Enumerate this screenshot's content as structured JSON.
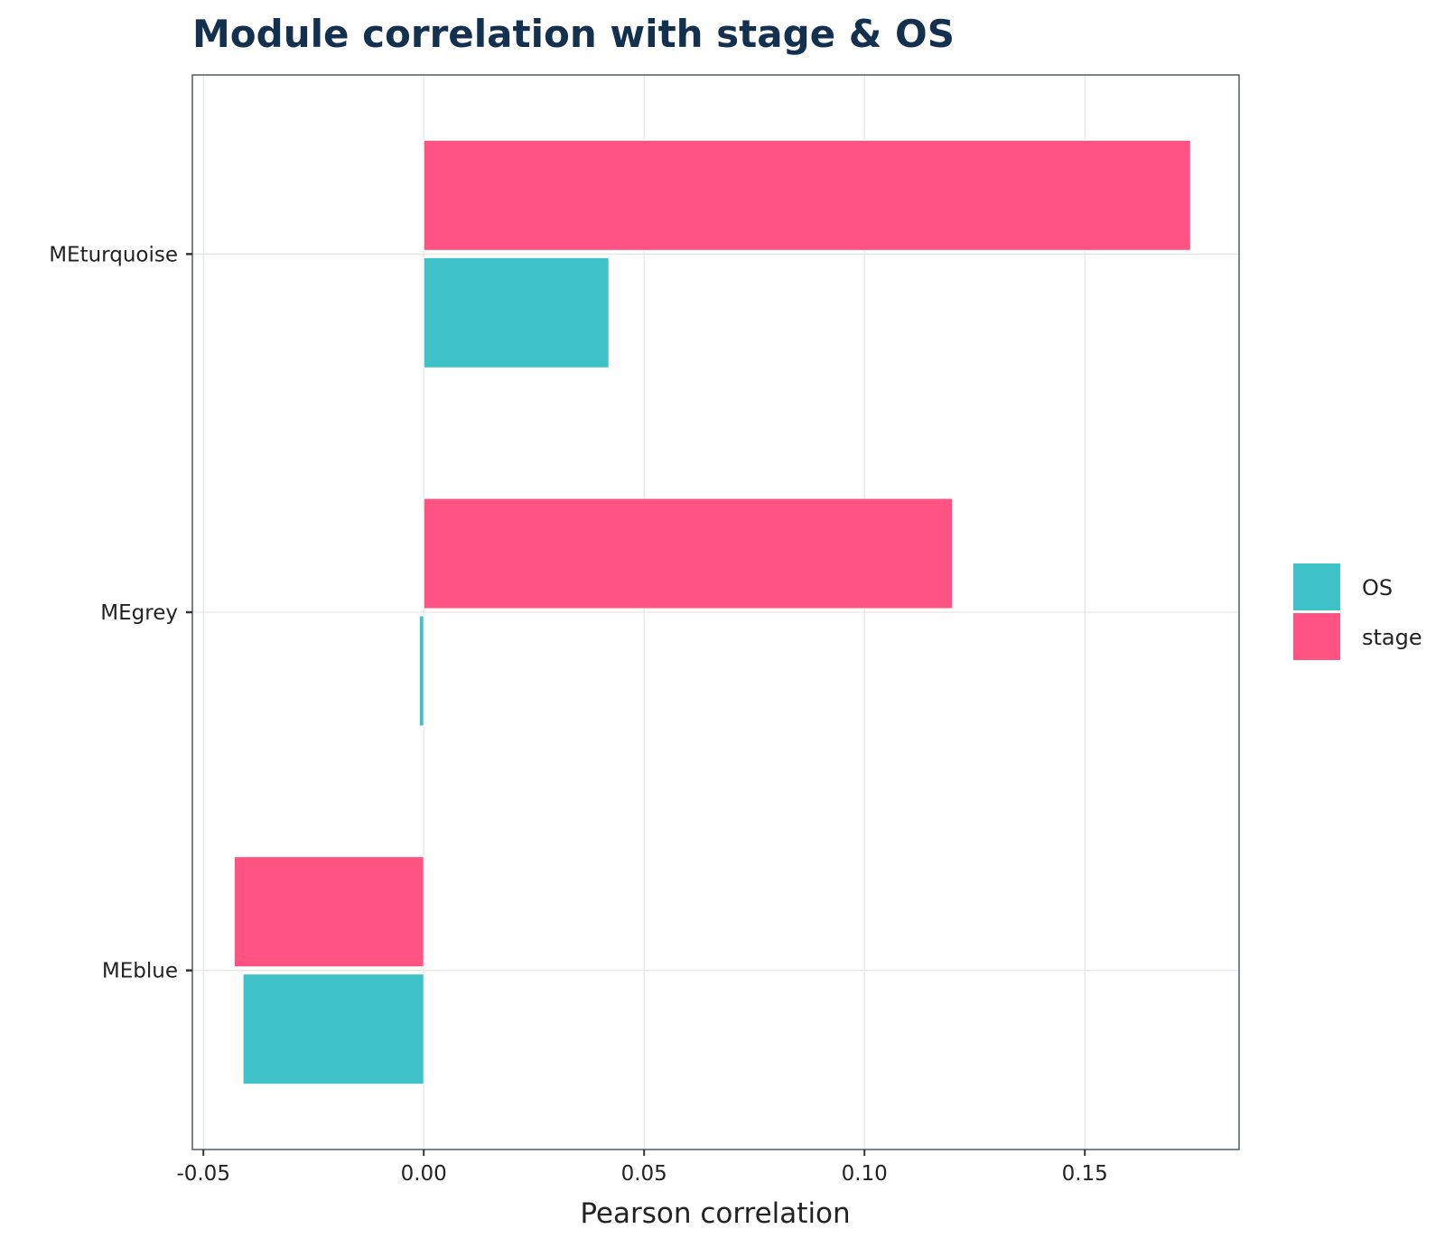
{
  "chart_data": {
    "type": "bar",
    "orientation": "horizontal",
    "title": "Module correlation with stage & OS",
    "xlabel": "Pearson correlation",
    "ylabel": "",
    "categories": [
      "MEblue",
      "MEgrey",
      "MEturquoise"
    ],
    "series": [
      {
        "name": "OS",
        "color": "#3fc1c8",
        "values": [
          -0.041,
          -0.001,
          0.042
        ]
      },
      {
        "name": "stage",
        "color": "#ff5383",
        "values": [
          -0.043,
          0.12,
          0.174
        ]
      }
    ],
    "xlim": [
      -0.0525,
      0.185
    ],
    "xticks": [
      -0.05,
      0.0,
      0.05,
      0.1,
      0.15
    ],
    "xtick_labels": [
      "-0.05",
      "0.00",
      "0.05",
      "0.10",
      "0.15"
    ],
    "grid": true,
    "legend_position": "right"
  }
}
